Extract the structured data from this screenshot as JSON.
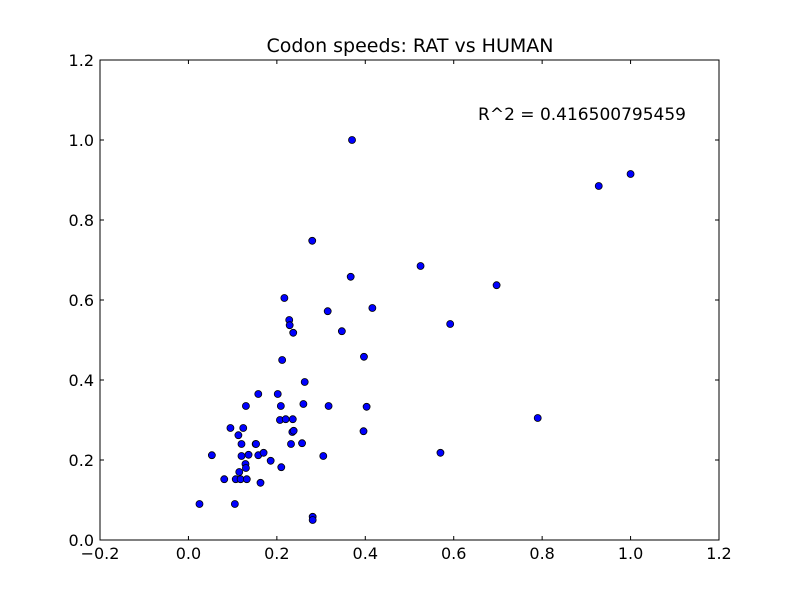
{
  "chart_data": {
    "type": "scatter",
    "title": "Codon speeds: RAT vs HUMAN",
    "xlabel": "",
    "ylabel": "",
    "xlim": [
      -0.2,
      1.2
    ],
    "ylim": [
      0.0,
      1.2
    ],
    "xticks": [
      "−0.2",
      "0.0",
      "0.2",
      "0.4",
      "0.6",
      "0.8",
      "1.0",
      "1.2"
    ],
    "yticks": [
      "0.0",
      "0.2",
      "0.4",
      "0.6",
      "0.8",
      "1.0",
      "1.2"
    ],
    "grid": false,
    "annotation": "R^2 = 0.416500795459",
    "marker_color": "#0000ff",
    "marker_edge_color": "#000000",
    "points": [
      [
        0.025,
        0.09
      ],
      [
        0.105,
        0.09
      ],
      [
        0.053,
        0.212
      ],
      [
        0.081,
        0.152
      ],
      [
        0.095,
        0.28
      ],
      [
        0.107,
        0.152
      ],
      [
        0.113,
        0.262
      ],
      [
        0.115,
        0.17
      ],
      [
        0.118,
        0.152
      ],
      [
        0.12,
        0.24
      ],
      [
        0.12,
        0.21
      ],
      [
        0.124,
        0.28
      ],
      [
        0.129,
        0.19
      ],
      [
        0.13,
        0.18
      ],
      [
        0.13,
        0.335
      ],
      [
        0.132,
        0.152
      ],
      [
        0.136,
        0.213
      ],
      [
        0.152,
        0.24
      ],
      [
        0.153,
        0.24
      ],
      [
        0.158,
        0.212
      ],
      [
        0.158,
        0.365
      ],
      [
        0.163,
        0.143
      ],
      [
        0.17,
        0.218
      ],
      [
        0.186,
        0.198
      ],
      [
        0.202,
        0.365
      ],
      [
        0.207,
        0.3
      ],
      [
        0.209,
        0.335
      ],
      [
        0.21,
        0.182
      ],
      [
        0.212,
        0.45
      ],
      [
        0.217,
        0.605
      ],
      [
        0.22,
        0.302
      ],
      [
        0.228,
        0.55
      ],
      [
        0.229,
        0.537
      ],
      [
        0.232,
        0.24
      ],
      [
        0.235,
        0.27
      ],
      [
        0.236,
        0.302
      ],
      [
        0.237,
        0.518
      ],
      [
        0.238,
        0.273
      ],
      [
        0.257,
        0.242
      ],
      [
        0.26,
        0.34
      ],
      [
        0.263,
        0.395
      ],
      [
        0.28,
        0.748
      ],
      [
        0.281,
        0.058
      ],
      [
        0.281,
        0.05
      ],
      [
        0.305,
        0.21
      ],
      [
        0.315,
        0.572
      ],
      [
        0.317,
        0.335
      ],
      [
        0.347,
        0.522
      ],
      [
        0.367,
        0.658
      ],
      [
        0.37,
        1.0
      ],
      [
        0.396,
        0.272
      ],
      [
        0.397,
        0.458
      ],
      [
        0.403,
        0.333
      ],
      [
        0.416,
        0.58
      ],
      [
        0.525,
        0.685
      ],
      [
        0.57,
        0.218
      ],
      [
        0.592,
        0.54
      ],
      [
        0.697,
        0.637
      ],
      [
        0.79,
        0.305
      ],
      [
        0.928,
        0.885
      ],
      [
        1.0,
        0.915
      ]
    ]
  }
}
